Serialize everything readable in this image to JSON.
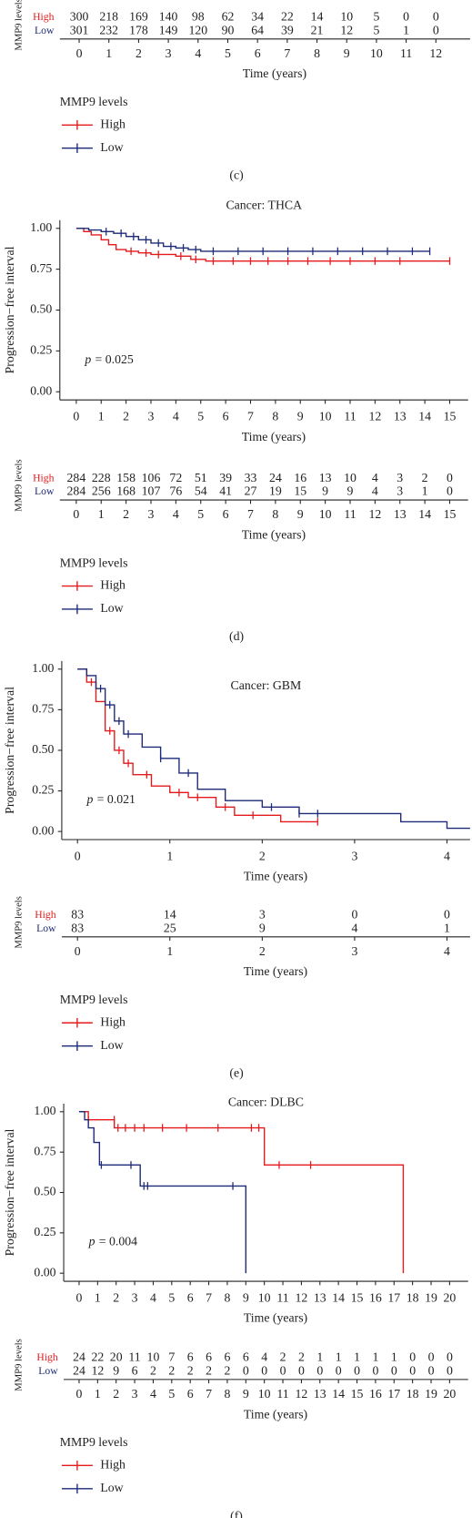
{
  "chart_data": [
    {
      "type": "table",
      "caption": "(c)",
      "legend_title": "MMP9 levels",
      "series": [
        {
          "name": "High",
          "color": "#e41a1c"
        },
        {
          "name": "Low",
          "color": "#1c2a78"
        }
      ],
      "risk_table": {
        "title": "MMP9 levels",
        "xlabel": "Time (years)",
        "xlim": [
          -0.65,
          13.15
        ],
        "times": [
          0,
          1,
          2,
          3,
          4,
          5,
          6,
          7,
          8,
          9,
          10,
          11,
          12
        ],
        "rows": [
          {
            "name": "High",
            "values": [
              300,
              218,
              169,
              140,
              98,
              62,
              34,
              22,
              14,
              10,
              5,
              0,
              0
            ]
          },
          {
            "name": "Low",
            "values": [
              301,
              232,
              178,
              149,
              120,
              90,
              64,
              39,
              21,
              12,
              5,
              1,
              0
            ]
          }
        ]
      }
    },
    {
      "type": "step",
      "title": "Cancer: THCA",
      "xlabel": "Time (years)",
      "ylabel": "Progression−free interval",
      "annotation": {
        "symbol": "p",
        "text": "= 0.025"
      },
      "caption": "(d)",
      "legend_title": "MMP9 levels",
      "xlim": [
        -0.66,
        15.74
      ],
      "xticks": [
        0,
        1,
        2,
        3,
        4,
        5,
        6,
        7,
        8,
        9,
        10,
        11,
        12,
        13,
        14,
        15
      ],
      "ylim": [
        -0.05,
        1.05
      ],
      "yticks": [
        {
          "value": 0,
          "label": "0.00"
        },
        {
          "value": 0.25,
          "label": "0.25"
        },
        {
          "value": 0.5,
          "label": "0.50"
        },
        {
          "value": 0.75,
          "label": "0.75"
        },
        {
          "value": 1,
          "label": "1.00"
        }
      ],
      "series": [
        {
          "name": "High",
          "color": "#e41a1c",
          "x": [
            0,
            0.3,
            0.6,
            1,
            1.3,
            1.6,
            2,
            2.5,
            3,
            4,
            4.6,
            5.2,
            15
          ],
          "values": [
            1,
            0.98,
            0.96,
            0.93,
            0.9,
            0.87,
            0.86,
            0.85,
            0.84,
            0.83,
            0.81,
            0.8,
            0.8
          ],
          "censor": {
            "x": [
              2.2,
              2.8,
              3.3,
              4.2,
              4.8,
              5.5,
              6.3,
              7,
              7.7,
              8.5,
              9.3,
              10.2,
              11,
              12,
              13,
              15
            ],
            "values": [
              0.86,
              0.85,
              0.84,
              0.83,
              0.81,
              0.8,
              0.8,
              0.8,
              0.8,
              0.8,
              0.8,
              0.8,
              0.8,
              0.8,
              0.8,
              0.8
            ]
          }
        },
        {
          "name": "Low",
          "color": "#1c2a78",
          "x": [
            0,
            0.5,
            1,
            1.5,
            2,
            2.5,
            3,
            3.5,
            4,
            4.5,
            5,
            14.2
          ],
          "values": [
            1,
            0.99,
            0.98,
            0.97,
            0.95,
            0.93,
            0.91,
            0.89,
            0.88,
            0.87,
            0.86,
            0.86
          ],
          "censor": {
            "x": [
              1.2,
              1.8,
              2.3,
              2.8,
              3.3,
              3.8,
              4.3,
              4.8,
              5.5,
              6.5,
              7.5,
              8.5,
              9.5,
              10.5,
              11.5,
              12.5,
              13.5,
              14.2
            ],
            "values": [
              0.98,
              0.97,
              0.95,
              0.93,
              0.91,
              0.89,
              0.88,
              0.87,
              0.86,
              0.86,
              0.86,
              0.86,
              0.86,
              0.86,
              0.86,
              0.86,
              0.86,
              0.86
            ]
          }
        }
      ],
      "risk_table": {
        "title": "MMP9 levels",
        "xlabel": "Time (years)",
        "times": [
          0,
          1,
          2,
          3,
          4,
          5,
          6,
          7,
          8,
          9,
          10,
          11,
          12,
          13,
          14,
          15
        ],
        "rows": [
          {
            "name": "High",
            "values": [
              284,
              228,
              158,
              106,
              72,
              51,
              39,
              33,
              24,
              16,
              13,
              10,
              4,
              3,
              2,
              0
            ]
          },
          {
            "name": "Low",
            "values": [
              284,
              256,
              168,
              107,
              76,
              54,
              41,
              27,
              19,
              15,
              9,
              9,
              4,
              3,
              1,
              0
            ]
          }
        ]
      }
    },
    {
      "type": "step",
      "title": "Cancer: GBM",
      "xlabel": "Time (years)",
      "ylabel": "Progression−free interval",
      "annotation": {
        "symbol": "p",
        "text": "= 0.021"
      },
      "caption": "(e)",
      "legend_title": "MMP9 levels",
      "xlim": [
        -0.17,
        4.25
      ],
      "xticks": [
        0,
        1,
        2,
        3,
        4
      ],
      "ylim": [
        -0.05,
        1.05
      ],
      "yticks": [
        {
          "value": 0,
          "label": "0.00"
        },
        {
          "value": 0.25,
          "label": "0.25"
        },
        {
          "value": 0.5,
          "label": "0.50"
        },
        {
          "value": 0.75,
          "label": "0.75"
        },
        {
          "value": 1,
          "label": "1.00"
        }
      ],
      "series": [
        {
          "name": "High",
          "color": "#e41a1c",
          "x": [
            0,
            0.1,
            0.2,
            0.3,
            0.4,
            0.5,
            0.6,
            0.8,
            1,
            1.2,
            1.5,
            1.7,
            2.2,
            2.6
          ],
          "values": [
            1,
            0.92,
            0.8,
            0.62,
            0.5,
            0.42,
            0.35,
            0.28,
            0.24,
            0.21,
            0.15,
            0.1,
            0.06,
            0.06
          ],
          "censor": {
            "x": [
              0.15,
              0.35,
              0.45,
              0.55,
              0.75,
              1.1,
              1.3,
              1.6,
              1.9,
              2.6
            ],
            "values": [
              0.92,
              0.62,
              0.5,
              0.42,
              0.35,
              0.24,
              0.21,
              0.15,
              0.1,
              0.06
            ]
          }
        },
        {
          "name": "Low",
          "color": "#1c2a78",
          "x": [
            0,
            0.1,
            0.2,
            0.3,
            0.4,
            0.5,
            0.7,
            0.9,
            1.1,
            1.3,
            1.6,
            2,
            2.4,
            3.5,
            4,
            4.25
          ],
          "values": [
            1,
            0.96,
            0.88,
            0.78,
            0.68,
            0.6,
            0.52,
            0.45,
            0.36,
            0.26,
            0.19,
            0.15,
            0.11,
            0.06,
            0.02,
            0.02
          ],
          "censor": {
            "x": [
              0.25,
              0.35,
              0.45,
              0.55,
              0.9,
              1.2,
              2.1,
              2.4,
              2.6
            ],
            "values": [
              0.88,
              0.78,
              0.68,
              0.6,
              0.45,
              0.36,
              0.15,
              0.11,
              0.11
            ]
          }
        }
      ],
      "risk_table": {
        "title": "MMP9 levels",
        "xlabel": "Time (years)",
        "times": [
          0,
          1,
          2,
          3,
          4
        ],
        "rows": [
          {
            "name": "High",
            "values": [
              83,
              14,
              3,
              0,
              0
            ]
          },
          {
            "name": "Low",
            "values": [
              83,
              25,
              9,
              4,
              1
            ]
          }
        ]
      }
    },
    {
      "type": "step",
      "title": "Cancer: DLBC",
      "xlabel": "Time (years)",
      "ylabel": "Progression−free interval",
      "annotation": {
        "symbol": "p",
        "text": "= 0.004"
      },
      "caption": "(f)",
      "legend_title": "MMP9 levels",
      "xlim": [
        -0.83,
        21
      ],
      "xticks": [
        0,
        1,
        2,
        3,
        4,
        5,
        6,
        7,
        8,
        9,
        10,
        11,
        12,
        13,
        14,
        15,
        16,
        17,
        18,
        19,
        20
      ],
      "ylim": [
        -0.05,
        1.05
      ],
      "yticks": [
        {
          "value": 0,
          "label": "0.00"
        },
        {
          "value": 0.25,
          "label": "0.25"
        },
        {
          "value": 0.5,
          "label": "0.50"
        },
        {
          "value": 0.75,
          "label": "0.75"
        },
        {
          "value": 1,
          "label": "1.00"
        }
      ],
      "series": [
        {
          "name": "High",
          "color": "#e41a1c",
          "x": [
            0,
            0.5,
            1.9,
            10,
            17.5
          ],
          "values": [
            1,
            0.95,
            0.9,
            0.67,
            0
          ],
          "censor": {
            "x": [
              0.5,
              1.9,
              2.1,
              2.5,
              3,
              3.5,
              4.5,
              5.8,
              7.5,
              9.3,
              9.7,
              10.8,
              12.5
            ],
            "values": [
              0.95,
              0.95,
              0.9,
              0.9,
              0.9,
              0.9,
              0.9,
              0.9,
              0.9,
              0.9,
              0.9,
              0.67,
              0.67
            ]
          }
        },
        {
          "name": "Low",
          "color": "#1c2a78",
          "x": [
            0,
            0.3,
            0.5,
            0.8,
            1.1,
            3.3,
            9
          ],
          "values": [
            1,
            0.95,
            0.9,
            0.81,
            0.67,
            0.54,
            0
          ],
          "censor": {
            "x": [
              1.2,
              2.8,
              3.5,
              3.7,
              8.3
            ],
            "values": [
              0.67,
              0.67,
              0.54,
              0.54,
              0.54
            ]
          }
        }
      ],
      "risk_table": {
        "title": "MMP9 levels",
        "xlabel": "Time (years)",
        "times": [
          0,
          1,
          2,
          3,
          4,
          5,
          6,
          7,
          8,
          9,
          10,
          11,
          12,
          13,
          14,
          15,
          16,
          17,
          18,
          19,
          20
        ],
        "rows": [
          {
            "name": "High",
            "values": [
              24,
              22,
              20,
              11,
              10,
              7,
              6,
              6,
              6,
              6,
              4,
              2,
              2,
              1,
              1,
              1,
              1,
              1,
              0,
              0,
              0
            ]
          },
          {
            "name": "Low",
            "values": [
              24,
              12,
              9,
              6,
              2,
              2,
              2,
              2,
              2,
              0,
              0,
              0,
              0,
              0,
              0,
              0,
              0,
              0,
              0,
              0,
              0
            ]
          }
        ]
      }
    }
  ]
}
